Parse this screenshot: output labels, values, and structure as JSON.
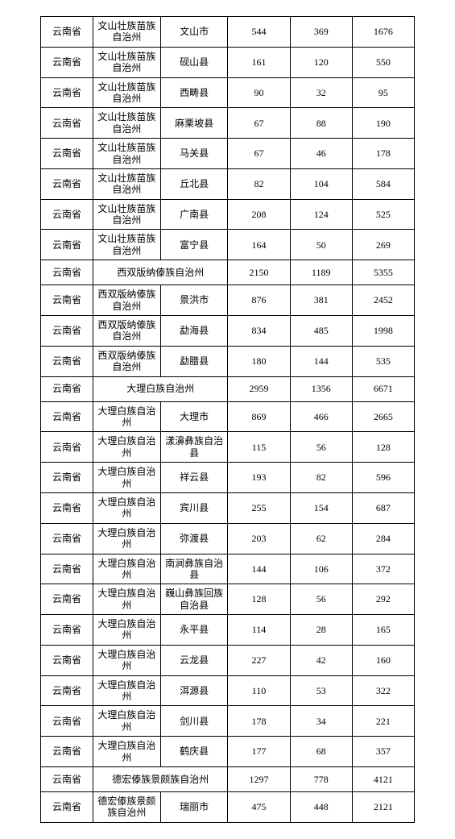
{
  "columns": [
    "province",
    "prefecture",
    "county",
    "v1",
    "v2",
    "v3"
  ],
  "rows": [
    {
      "province": "云南省",
      "prefecture": "文山壮族苗族自治州",
      "county": "文山市",
      "v1": "544",
      "v2": "369",
      "v3": "1676"
    },
    {
      "province": "云南省",
      "prefecture": "文山壮族苗族自治州",
      "county": "砚山县",
      "v1": "161",
      "v2": "120",
      "v3": "550"
    },
    {
      "province": "云南省",
      "prefecture": "文山壮族苗族自治州",
      "county": "西畴县",
      "v1": "90",
      "v2": "32",
      "v3": "95"
    },
    {
      "province": "云南省",
      "prefecture": "文山壮族苗族自治州",
      "county": "麻栗坡县",
      "v1": "67",
      "v2": "88",
      "v3": "190"
    },
    {
      "province": "云南省",
      "prefecture": "文山壮族苗族自治州",
      "county": "马关县",
      "v1": "67",
      "v2": "46",
      "v3": "178"
    },
    {
      "province": "云南省",
      "prefecture": "文山壮族苗族自治州",
      "county": "丘北县",
      "v1": "82",
      "v2": "104",
      "v3": "584"
    },
    {
      "province": "云南省",
      "prefecture": "文山壮族苗族自治州",
      "county": "广南县",
      "v1": "208",
      "v2": "124",
      "v3": "525"
    },
    {
      "province": "云南省",
      "prefecture": "文山壮族苗族自治州",
      "county": "富宁县",
      "v1": "164",
      "v2": "50",
      "v3": "269"
    },
    {
      "province": "云南省",
      "prefecture": "西双版纳傣族自治州",
      "span": true,
      "v1": "2150",
      "v2": "1189",
      "v3": "5355"
    },
    {
      "province": "云南省",
      "prefecture": "西双版纳傣族自治州",
      "county": "景洪市",
      "v1": "876",
      "v2": "381",
      "v3": "2452"
    },
    {
      "province": "云南省",
      "prefecture": "西双版纳傣族自治州",
      "county": "勐海县",
      "v1": "834",
      "v2": "485",
      "v3": "1998"
    },
    {
      "province": "云南省",
      "prefecture": "西双版纳傣族自治州",
      "county": "勐腊县",
      "v1": "180",
      "v2": "144",
      "v3": "535"
    },
    {
      "province": "云南省",
      "prefecture": "大理白族自治州",
      "span": true,
      "v1": "2959",
      "v2": "1356",
      "v3": "6671"
    },
    {
      "province": "云南省",
      "prefecture": "大理白族自治州",
      "county": "大理市",
      "v1": "869",
      "v2": "466",
      "v3": "2665"
    },
    {
      "province": "云南省",
      "prefecture": "大理白族自治州",
      "county": "漾濞彝族自治县",
      "v1": "115",
      "v2": "56",
      "v3": "128"
    },
    {
      "province": "云南省",
      "prefecture": "大理白族自治州",
      "county": "祥云县",
      "v1": "193",
      "v2": "82",
      "v3": "596"
    },
    {
      "province": "云南省",
      "prefecture": "大理白族自治州",
      "county": "宾川县",
      "v1": "255",
      "v2": "154",
      "v3": "687"
    },
    {
      "province": "云南省",
      "prefecture": "大理白族自治州",
      "county": "弥渡县",
      "v1": "203",
      "v2": "62",
      "v3": "284"
    },
    {
      "province": "云南省",
      "prefecture": "大理白族自治州",
      "county": "南涧彝族自治县",
      "v1": "144",
      "v2": "106",
      "v3": "372"
    },
    {
      "province": "云南省",
      "prefecture": "大理白族自治州",
      "county": "巍山彝族回族自治县",
      "v1": "128",
      "v2": "56",
      "v3": "292"
    },
    {
      "province": "云南省",
      "prefecture": "大理白族自治州",
      "county": "永平县",
      "v1": "114",
      "v2": "28",
      "v3": "165"
    },
    {
      "province": "云南省",
      "prefecture": "大理白族自治州",
      "county": "云龙县",
      "v1": "227",
      "v2": "42",
      "v3": "160"
    },
    {
      "province": "云南省",
      "prefecture": "大理白族自治州",
      "county": "洱源县",
      "v1": "110",
      "v2": "53",
      "v3": "322"
    },
    {
      "province": "云南省",
      "prefecture": "大理白族自治州",
      "county": "剑川县",
      "v1": "178",
      "v2": "34",
      "v3": "221"
    },
    {
      "province": "云南省",
      "prefecture": "大理白族自治州",
      "county": "鹤庆县",
      "v1": "177",
      "v2": "68",
      "v3": "357"
    },
    {
      "province": "云南省",
      "prefecture": "德宏傣族景颇族自治州",
      "span": true,
      "v1": "1297",
      "v2": "778",
      "v3": "4121"
    },
    {
      "province": "云南省",
      "prefecture": "德宏傣族景颇族自治州",
      "county": "瑞丽市",
      "v1": "475",
      "v2": "448",
      "v3": "2121"
    }
  ]
}
